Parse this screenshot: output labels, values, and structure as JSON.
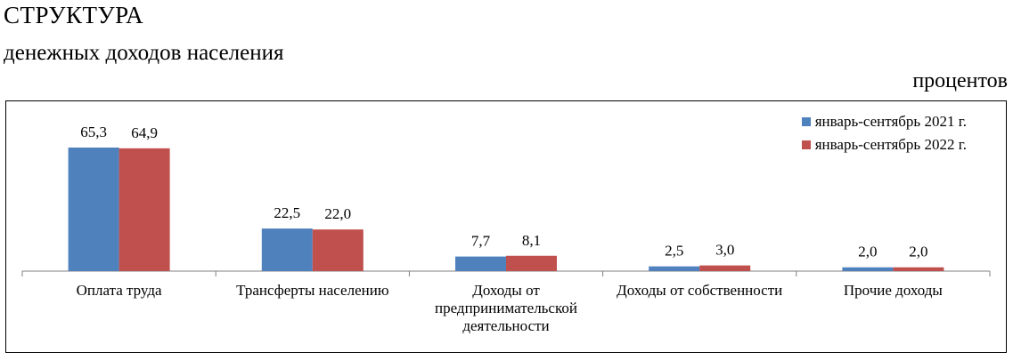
{
  "title": "СТРУКТУРА",
  "subtitle": "денежных доходов населения",
  "unit": "процентов",
  "colors": {
    "series1": "#4F81BD",
    "series2": "#C0504D"
  },
  "chart_data": {
    "type": "bar",
    "categories": [
      "Оплата труда",
      "Трансферты населению",
      "Доходы от предпринимательской деятельности",
      "Доходы от собственности",
      "Прочие доходы"
    ],
    "category_lines": [
      [
        "Оплата труда"
      ],
      [
        "Трансферты населению"
      ],
      [
        "Доходы от",
        "предпринимательской",
        "деятельности"
      ],
      [
        "Доходы от собственности"
      ],
      [
        "Прочие доходы"
      ]
    ],
    "series": [
      {
        "name": "январь-сентябрь 2021 г.",
        "values": [
          65.3,
          22.5,
          7.7,
          2.5,
          2.0
        ],
        "labels": [
          "65,3",
          "22,5",
          "7,7",
          "2,5",
          "2,0"
        ]
      },
      {
        "name": "январь-сентябрь 2022 г.",
        "values": [
          64.9,
          22.0,
          8.1,
          3.0,
          2.0
        ],
        "labels": [
          "64,9",
          "22,0",
          "8,1",
          "3,0",
          "2,0"
        ]
      }
    ],
    "ylim": [
      0,
      70
    ],
    "legend_position": "top-right",
    "grid": false
  }
}
